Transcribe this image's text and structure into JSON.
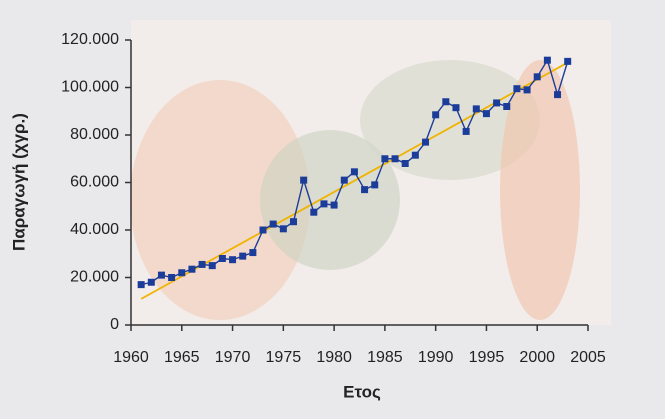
{
  "chart_data": {
    "type": "line",
    "xlabel": "Ετος",
    "ylabel": "Παραγωγή (χγρ.)",
    "series": [
      {
        "color": "#1c3c9a",
        "marker": "square",
        "x": [
          1961,
          1962,
          1963,
          1964,
          1965,
          1966,
          1967,
          1968,
          1969,
          1970,
          1971,
          1972,
          1973,
          1974,
          1975,
          1976,
          1977,
          1978,
          1979,
          1980,
          1981,
          1982,
          1983,
          1984,
          1985,
          1986,
          1987,
          1988,
          1989,
          1990,
          1991,
          1992,
          1993,
          1994,
          1995,
          1996,
          1997,
          1998,
          1999,
          2000,
          2001,
          2002,
          2003
        ],
        "values": [
          17000,
          18000,
          21000,
          20000,
          22000,
          23500,
          25500,
          25000,
          28000,
          27500,
          29000,
          30500,
          40000,
          42500,
          40500,
          43500,
          61000,
          47500,
          51000,
          50500,
          61000,
          64500,
          57000,
          59000,
          70000,
          70000,
          68000,
          71500,
          77000,
          88500,
          94000,
          91500,
          81500,
          91000,
          89000,
          93500,
          92000,
          99500,
          99000,
          104500,
          111500,
          97000,
          111000
        ]
      },
      {
        "color": "#f0b400",
        "x": [
          1961,
          2003
        ],
        "values": [
          11000,
          110500
        ]
      }
    ],
    "xlim": [
      1960,
      2005
    ],
    "xticks": [
      1960,
      1965,
      1970,
      1975,
      1980,
      1985,
      1990,
      1995,
      2000,
      2005
    ],
    "ylim": [
      0,
      120000
    ],
    "yticks": [
      0,
      {
        "value": 20000,
        "label": "20.000"
      },
      {
        "value": 40000,
        "label": "40.000"
      },
      {
        "value": 60000,
        "label": "60.000"
      },
      {
        "value": 80000,
        "label": "80.000"
      },
      {
        "value": 100000,
        "label": "100.000"
      },
      {
        "value": 120000,
        "label": "120.000"
      }
    ]
  }
}
